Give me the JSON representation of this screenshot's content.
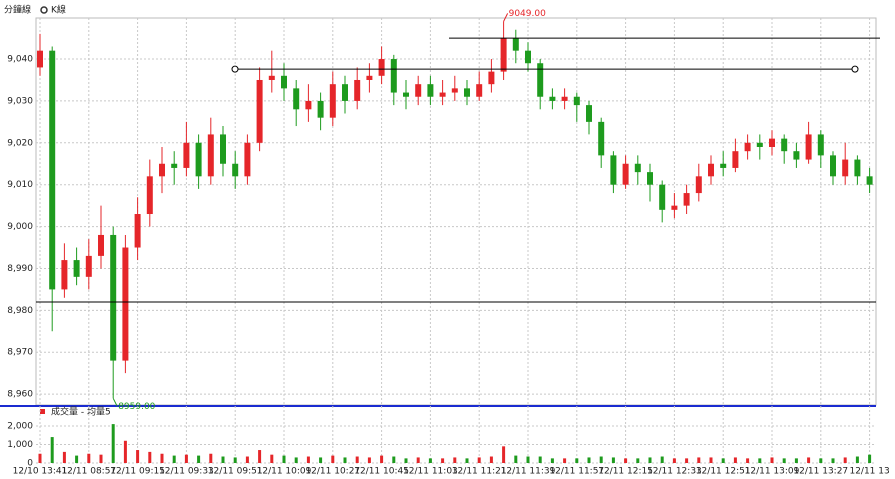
{
  "chart_data": {
    "type": "candlestick",
    "period_label": "分鐘線",
    "chart_label": "K線",
    "volume_legend": "成交量 - 均量5",
    "up_color": "#e5262a",
    "down_color": "#1e9b1e",
    "grid": true,
    "open": [
      9038,
      9042,
      8985,
      8992,
      8988,
      8993,
      8998,
      8968,
      8995,
      9003,
      9012,
      9015,
      9014,
      9020,
      9012,
      9022,
      9015,
      9012,
      9020,
      9035,
      9036,
      9033,
      9028,
      9030,
      9026,
      9034,
      9030,
      9035,
      9036,
      9040,
      9032,
      9031,
      9034,
      9031,
      9032,
      9033,
      9031,
      9034,
      9037,
      9045,
      9042,
      9039,
      9031,
      9030,
      9031,
      9029,
      9025,
      9017,
      9010,
      9015,
      9013,
      9010,
      9004,
      9005,
      9008,
      9012,
      9015,
      9014,
      9018,
      9020,
      9019,
      9021,
      9018,
      9016,
      9022,
      9017,
      9012,
      9016,
      9012
    ],
    "high": [
      9046,
      9043,
      8996,
      8995,
      8997,
      9005,
      9000,
      8998,
      9007,
      9016,
      9019,
      9018,
      9025,
      9022,
      9026,
      9024,
      9018,
      9022,
      9038,
      9042,
      9039,
      9035,
      9034,
      9032,
      9037,
      9036,
      9038,
      9039,
      9043,
      9041,
      9035,
      9036,
      9036,
      9035,
      9036,
      9035,
      9037,
      9040,
      9049,
      9047,
      9044,
      9040,
      9033,
      9033,
      9032,
      9030,
      9026,
      9018,
      9017,
      9017,
      9015,
      9011,
      9008,
      9010,
      9015,
      9017,
      9018,
      9021,
      9022,
      9022,
      9023,
      9022,
      9020,
      9025,
      9023,
      9018,
      9020,
      9017,
      9014
    ],
    "low": [
      9036,
      8975,
      8983,
      8986,
      8985,
      8990,
      8959,
      8965,
      8992,
      9000,
      9008,
      9010,
      9012,
      9009,
      9010,
      9012,
      9009,
      9010,
      9018,
      9032,
      9030,
      9024,
      9025,
      9023,
      9024,
      9027,
      9028,
      9032,
      9034,
      9029,
      9028,
      9029,
      9029,
      9029,
      9030,
      9029,
      9030,
      9032,
      9035,
      9039,
      9037,
      9028,
      9028,
      9028,
      9025,
      9022,
      9014,
      9008,
      9009,
      9010,
      9006,
      9001,
      9002,
      9003,
      9006,
      9010,
      9012,
      9013,
      9016,
      9016,
      9017,
      9015,
      9014,
      9015,
      9014,
      9010,
      9010,
      9010,
      9008
    ],
    "close": [
      9042,
      8985,
      8992,
      8988,
      8993,
      8998,
      8968,
      8995,
      9003,
      9012,
      9015,
      9014,
      9020,
      9012,
      9022,
      9015,
      9012,
      9020,
      9035,
      9036,
      9033,
      9028,
      9030,
      9026,
      9034,
      9030,
      9035,
      9036,
      9040,
      9032,
      9031,
      9034,
      9031,
      9032,
      9033,
      9031,
      9034,
      9037,
      9045,
      9042,
      9039,
      9031,
      9030,
      9031,
      9029,
      9025,
      9017,
      9010,
      9015,
      9013,
      9010,
      9004,
      9005,
      9008,
      9012,
      9015,
      9014,
      9018,
      9020,
      9019,
      9021,
      9018,
      9016,
      9022,
      9017,
      9012,
      9016,
      9012,
      9010
    ],
    "volume": [
      500,
      1400,
      600,
      400,
      500,
      450,
      2100,
      1200,
      700,
      600,
      500,
      400,
      450,
      400,
      500,
      350,
      300,
      350,
      700,
      450,
      400,
      300,
      350,
      300,
      400,
      300,
      350,
      300,
      400,
      350,
      250,
      300,
      250,
      250,
      300,
      250,
      300,
      350,
      900,
      400,
      350,
      350,
      250,
      250,
      250,
      300,
      350,
      300,
      250,
      250,
      300,
      350,
      250,
      250,
      300,
      300,
      250,
      300,
      250,
      250,
      300,
      250,
      250,
      300,
      250,
      250,
      300,
      350,
      450
    ],
    "xticks": [
      {
        "value": 0,
        "label": "12/10 13:41"
      },
      {
        "value": 4,
        "label": "12/11 08:57"
      },
      {
        "value": 8,
        "label": "12/11 09:15"
      },
      {
        "value": 12,
        "label": "12/11 09:33"
      },
      {
        "value": 16,
        "label": "12/11 09:51"
      },
      {
        "value": 20,
        "label": "12/11 10:09"
      },
      {
        "value": 24,
        "label": "12/11 10:27"
      },
      {
        "value": 28,
        "label": "12/11 10:45"
      },
      {
        "value": 32,
        "label": "12/11 11:03"
      },
      {
        "value": 36,
        "label": "12/11 11:21"
      },
      {
        "value": 40,
        "label": "12/11 11:39"
      },
      {
        "value": 44,
        "label": "12/11 11:57"
      },
      {
        "value": 48,
        "label": "12/11 12:15"
      },
      {
        "value": 52,
        "label": "12/11 12:33"
      },
      {
        "value": 56,
        "label": "12/11 12:51"
      },
      {
        "value": 60,
        "label": "12/11 13:09"
      },
      {
        "value": 64,
        "label": "12/11 13:27"
      },
      {
        "value": 68,
        "label": "12/11 13"
      }
    ],
    "ylim": [
      8957.4,
      9049.8
    ],
    "yticks": [
      {
        "value": 8960,
        "label": "8,960"
      },
      {
        "value": 8970,
        "label": "8,970"
      },
      {
        "value": 8980,
        "label": "8,980"
      },
      {
        "value": 8990,
        "label": "8,990"
      },
      {
        "value": 9000,
        "label": "9,000"
      },
      {
        "value": 9010,
        "label": "9,010"
      },
      {
        "value": 9020,
        "label": "9,020"
      },
      {
        "value": 9030,
        "label": "9,030"
      },
      {
        "value": 9040,
        "label": "9,040"
      }
    ],
    "volume_ylim": [
      0,
      2430
    ],
    "volume_yticks": [
      0,
      {
        "value": 1000,
        "label": "1,000"
      },
      {
        "value": 2000,
        "label": "2,000"
      }
    ],
    "hlines": [
      9045,
      9037.6,
      8982
    ],
    "annotations": [
      {
        "text": "9049.00",
        "color": "#e5262a"
      },
      {
        "text": "8959.00",
        "color": "#1e9b1e"
      }
    ]
  }
}
